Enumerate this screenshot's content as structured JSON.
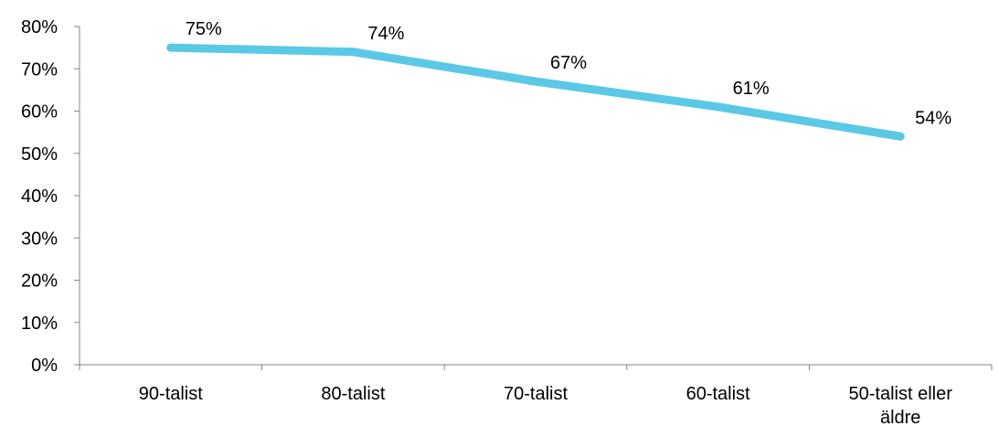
{
  "chart_data": {
    "type": "line",
    "categories": [
      "90-talist",
      "80-talist",
      "70-talist",
      "60-talist",
      "50-talist eller äldre"
    ],
    "category_lines": [
      [
        "90-talist"
      ],
      [
        "80-talist"
      ],
      [
        "70-talist"
      ],
      [
        "60-talist"
      ],
      [
        "50-talist eller",
        "äldre"
      ]
    ],
    "series": [
      {
        "values": [
          75,
          74,
          67,
          61,
          54
        ],
        "data_labels": [
          "75%",
          "74%",
          "67%",
          "61%",
          "54%"
        ],
        "color": "#5bc8e6"
      }
    ],
    "ylim": [
      0,
      80
    ],
    "y_ticks": [
      0,
      10,
      20,
      30,
      40,
      50,
      60,
      70,
      80
    ],
    "y_tick_labels": [
      "0%",
      "10%",
      "20%",
      "30%",
      "40%",
      "50%",
      "60%",
      "70%",
      "80%"
    ],
    "title": "",
    "xlabel": "",
    "ylabel": "",
    "grid": false,
    "legend": "none",
    "axis_color": "#868686"
  }
}
